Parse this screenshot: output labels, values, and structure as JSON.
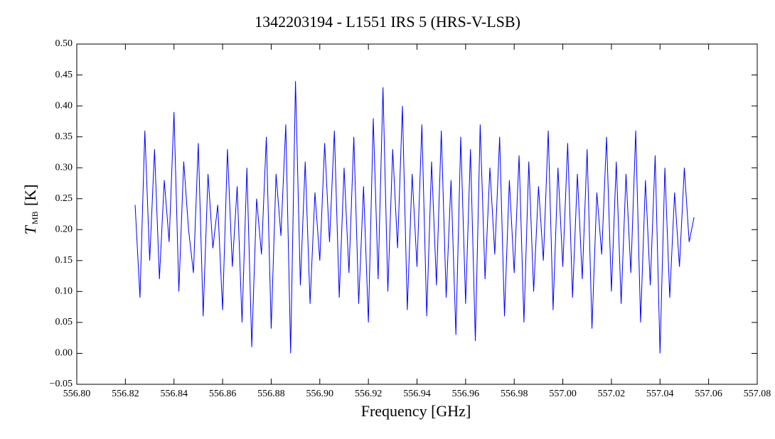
{
  "chart_data": {
    "type": "line",
    "title": "1342203194 - L1551 IRS 5 (HRS-V-LSB)",
    "x_label": "Frequency [GHz]",
    "y_label": "T",
    "y_label_sub": "MB",
    "y_label_unit": "[K]",
    "xlim": [
      556.8,
      557.08
    ],
    "xticks": [
      {
        "value": 556.8,
        "label": "556.80"
      },
      556.82,
      556.84,
      556.86,
      556.88,
      {
        "value": 556.9,
        "label": "556.90"
      },
      556.92,
      556.94,
      556.96,
      556.98,
      {
        "value": 557.0,
        "label": "557.00"
      },
      557.02,
      557.04,
      557.06,
      557.08
    ],
    "ylim": [
      -0.05,
      0.5
    ],
    "yticks": [
      {
        "value": -0.05,
        "label": "−0.05"
      },
      {
        "value": 0.0,
        "label": "0.00"
      },
      0.05,
      {
        "value": 0.1,
        "label": "0.10"
      },
      0.15,
      {
        "value": 0.2,
        "label": "0.20"
      },
      0.25,
      {
        "value": 0.3,
        "label": "0.30"
      },
      0.35,
      {
        "value": 0.4,
        "label": "0.40"
      },
      0.45,
      {
        "value": 0.5,
        "label": "0.50"
      }
    ],
    "series": [
      {
        "color": "#0000ff",
        "x": [
          556.824,
          556.826,
          556.828,
          556.83,
          556.832,
          556.834,
          556.836,
          556.838,
          556.84,
          556.842,
          556.844,
          556.846,
          556.848,
          556.85,
          556.852,
          556.854,
          556.856,
          556.858,
          556.86,
          556.862,
          556.864,
          556.866,
          556.868,
          556.87,
          556.872,
          556.874,
          556.876,
          556.878,
          556.88,
          556.882,
          556.884,
          556.886,
          556.888,
          556.89,
          556.892,
          556.894,
          556.896,
          556.898,
          556.9,
          556.902,
          556.904,
          556.906,
          556.908,
          556.91,
          556.912,
          556.914,
          556.916,
          556.918,
          556.92,
          556.922,
          556.924,
          556.926,
          556.928,
          556.93,
          556.932,
          556.934,
          556.936,
          556.938,
          556.94,
          556.942,
          556.944,
          556.946,
          556.948,
          556.95,
          556.952,
          556.954,
          556.956,
          556.958,
          556.96,
          556.962,
          556.964,
          556.966,
          556.968,
          556.97,
          556.972,
          556.974,
          556.976,
          556.978,
          556.98,
          556.982,
          556.984,
          556.986,
          556.988,
          556.99,
          556.992,
          556.994,
          556.996,
          556.998,
          557.0,
          557.002,
          557.004,
          557.006,
          557.008,
          557.01,
          557.012,
          557.014,
          557.016,
          557.018,
          557.02,
          557.022,
          557.024,
          557.026,
          557.028,
          557.03,
          557.032,
          557.034,
          557.036,
          557.038,
          557.04,
          557.042,
          557.044,
          557.046,
          557.048,
          557.05,
          557.052,
          557.054
        ],
        "values": [
          0.24,
          0.09,
          0.36,
          0.15,
          0.33,
          0.12,
          0.28,
          0.18,
          0.39,
          0.1,
          0.31,
          0.2,
          0.13,
          0.34,
          0.06,
          0.29,
          0.17,
          0.24,
          0.07,
          0.33,
          0.14,
          0.27,
          0.05,
          0.3,
          0.01,
          0.25,
          0.16,
          0.35,
          0.04,
          0.29,
          0.19,
          0.37,
          0.0,
          0.44,
          0.11,
          0.31,
          0.08,
          0.26,
          0.15,
          0.34,
          0.18,
          0.36,
          0.09,
          0.3,
          0.13,
          0.35,
          0.08,
          0.27,
          0.05,
          0.38,
          0.12,
          0.43,
          0.1,
          0.33,
          0.17,
          0.4,
          0.07,
          0.29,
          0.14,
          0.37,
          0.06,
          0.31,
          0.11,
          0.36,
          0.09,
          0.28,
          0.03,
          0.35,
          0.08,
          0.33,
          0.02,
          0.37,
          0.12,
          0.3,
          0.16,
          0.35,
          0.06,
          0.28,
          0.13,
          0.32,
          0.05,
          0.31,
          0.1,
          0.27,
          0.15,
          0.36,
          0.07,
          0.3,
          0.14,
          0.34,
          0.09,
          0.29,
          0.12,
          0.33,
          0.04,
          0.26,
          0.16,
          0.35,
          0.1,
          0.31,
          0.08,
          0.29,
          0.13,
          0.36,
          0.05,
          0.28,
          0.11,
          0.32,
          0.0,
          0.3,
          0.09,
          0.26,
          0.14,
          0.3,
          0.18,
          0.22
        ]
      }
    ]
  }
}
